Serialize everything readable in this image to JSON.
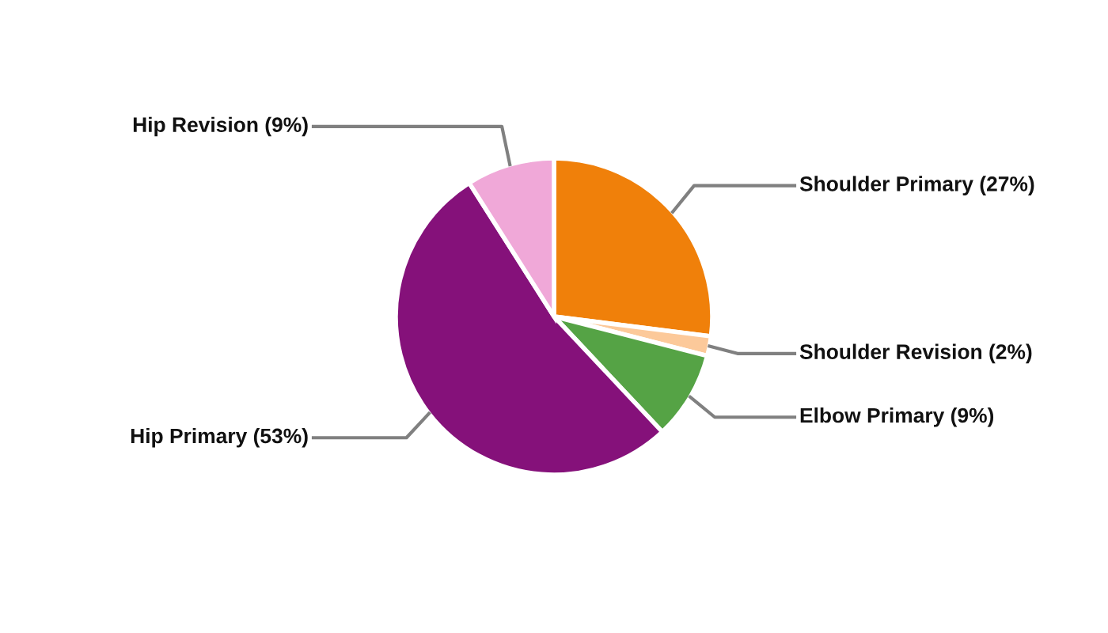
{
  "chart_data": {
    "type": "pie",
    "categories": [
      "Shoulder Primary",
      "Shoulder Revision",
      "Elbow Primary",
      "Hip Primary",
      "Hip Revision"
    ],
    "values": [
      27,
      2,
      9,
      53,
      9
    ],
    "colors": [
      "#f0800a",
      "#fcc99a",
      "#55a345",
      "#85117a",
      "#f0a8d8"
    ],
    "value_labels": [
      "(27%)",
      "(2%)",
      "(9%)",
      "(53%)",
      "(9%)"
    ],
    "legend": false
  }
}
